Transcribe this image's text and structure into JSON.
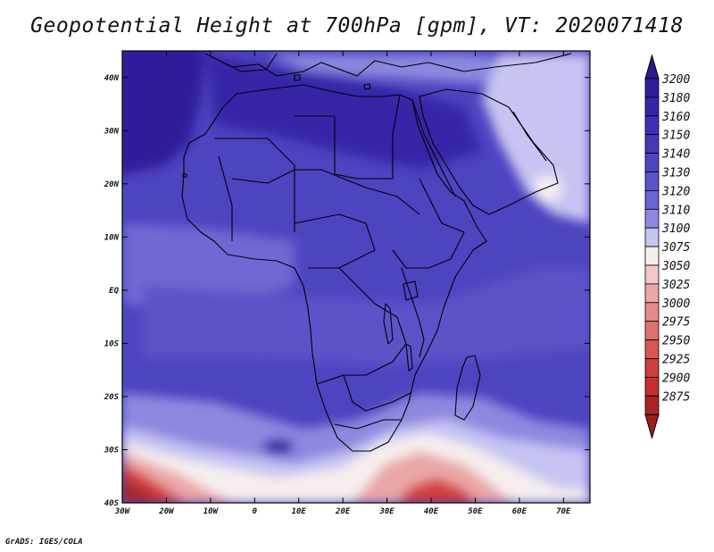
{
  "title": "Geopotential Height at 700hPa [gpm], VT: 2020071418",
  "credit": "GrADS: IGES/COLA",
  "map": {
    "lon_range": [
      -30,
      76
    ],
    "lat_range": [
      -40,
      45
    ],
    "lon_ticks": [
      {
        "value": -30,
        "label": "30W"
      },
      {
        "value": -20,
        "label": "20W"
      },
      {
        "value": -10,
        "label": "10W"
      },
      {
        "value": 0,
        "label": "0"
      },
      {
        "value": 10,
        "label": "10E"
      },
      {
        "value": 20,
        "label": "20E"
      },
      {
        "value": 30,
        "label": "30E"
      },
      {
        "value": 40,
        "label": "40E"
      },
      {
        "value": 50,
        "label": "50E"
      },
      {
        "value": 60,
        "label": "60E"
      },
      {
        "value": 70,
        "label": "70E"
      }
    ],
    "lat_ticks": [
      {
        "value": 40,
        "label": "40N"
      },
      {
        "value": 30,
        "label": "30N"
      },
      {
        "value": 20,
        "label": "20N"
      },
      {
        "value": 10,
        "label": "10N"
      },
      {
        "value": 0,
        "label": "EQ"
      },
      {
        "value": -10,
        "label": "10S"
      },
      {
        "value": -20,
        "label": "20S"
      },
      {
        "value": -30,
        "label": "30S"
      },
      {
        "value": -40,
        "label": "40S"
      }
    ]
  },
  "colorbar": {
    "levels": [
      {
        "label": "3200",
        "color": "#2e1f9a"
      },
      {
        "label": "3180",
        "color": "#3426a8"
      },
      {
        "label": "3160",
        "color": "#3c30b4"
      },
      {
        "label": "3150",
        "color": "#4439bb"
      },
      {
        "label": "3140",
        "color": "#4e45c2"
      },
      {
        "label": "3130",
        "color": "#5b53c9"
      },
      {
        "label": "3120",
        "color": "#6a64d2"
      },
      {
        "label": "3110",
        "color": "#8d89e0"
      },
      {
        "label": "3100",
        "color": "#c6c4f2"
      },
      {
        "label": "3075",
        "color": "#f6eeee"
      },
      {
        "label": "3050",
        "color": "#f2c8c8"
      },
      {
        "label": "3025",
        "color": "#eba6a6"
      },
      {
        "label": "3000",
        "color": "#e48a8a"
      },
      {
        "label": "2975",
        "color": "#de7070"
      },
      {
        "label": "2950",
        "color": "#d85656"
      },
      {
        "label": "2925",
        "color": "#d03e3e"
      },
      {
        "label": "2900",
        "color": "#c22f2f"
      },
      {
        "label": "2875",
        "color": "#a82525"
      }
    ],
    "top_color": "#2a1a8c",
    "bottom_color": "#9a2020"
  },
  "field_colors": {
    "base": "#4d44c0",
    "high": "#3426a8",
    "highest": "#2e1f9a",
    "mid": "#5b53c9",
    "light": "#6f69d3",
    "lighter": "#8d89e0",
    "pale": "#c6c4f2",
    "white": "#f6eeee",
    "pink": "#eba6a6",
    "red": "#d03e3e",
    "darkred": "#a82525"
  }
}
